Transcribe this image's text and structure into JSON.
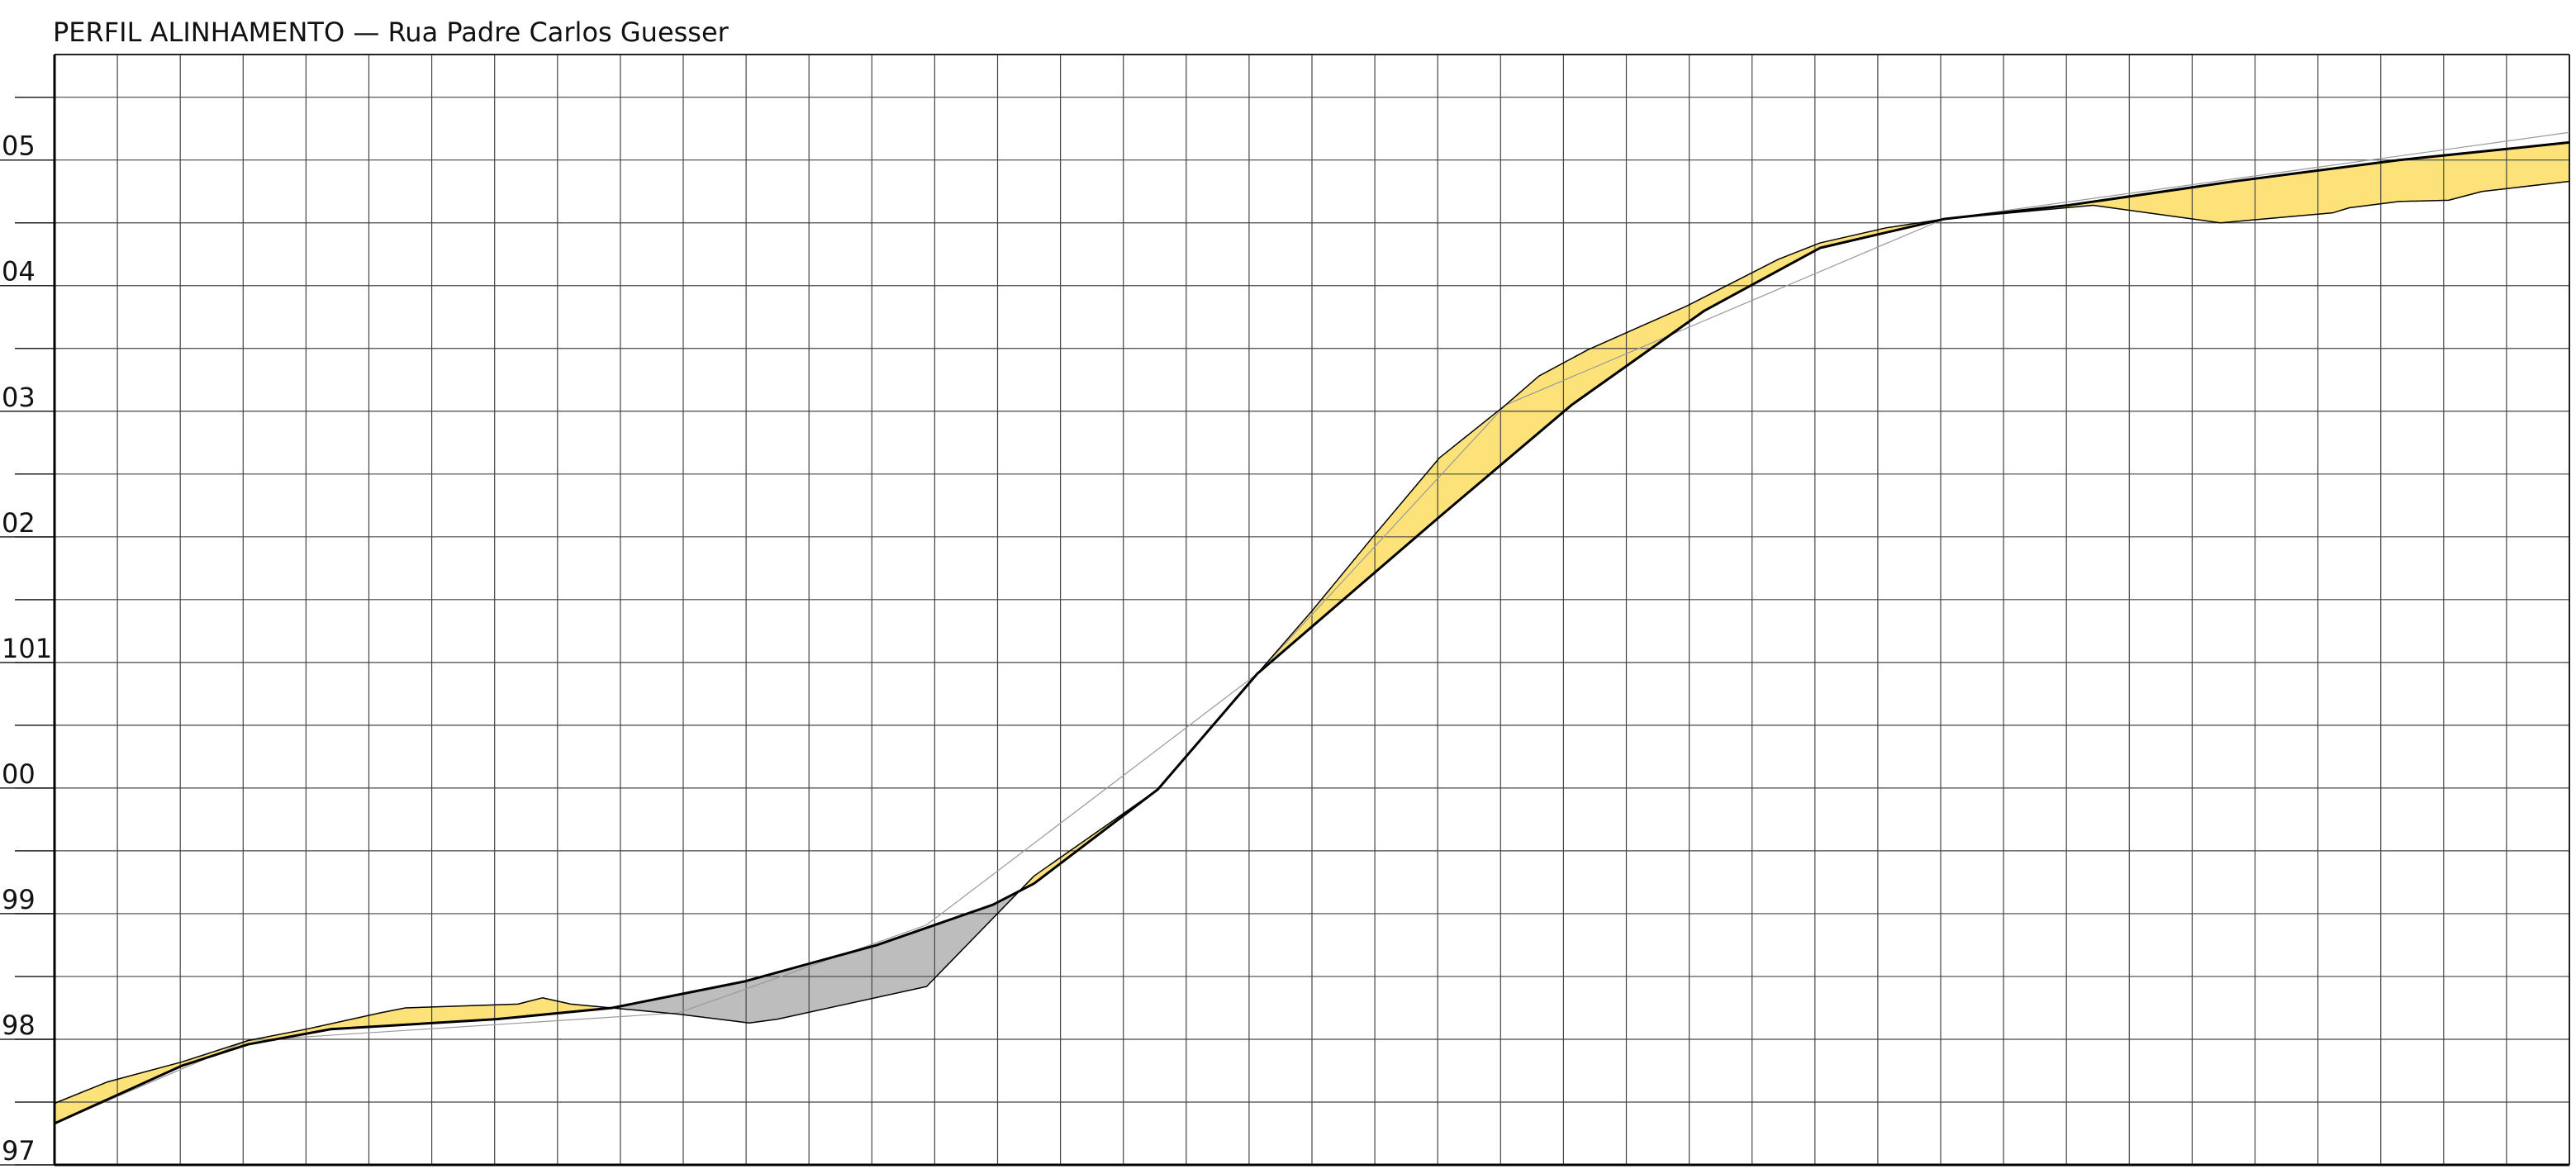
{
  "chart_data": {
    "type": "profile",
    "title": "PERFIL ALINHAMENTO — Rua Padre Carlos Guesser",
    "xlim": [
      0,
      40
    ],
    "xgrid": [
      0,
      1,
      2,
      3,
      4,
      5,
      6,
      7,
      8,
      9,
      10,
      11,
      12,
      13,
      14,
      15,
      16,
      17,
      18,
      19,
      20,
      21,
      22,
      23,
      24,
      25,
      26,
      27,
      28,
      29,
      30,
      31,
      32,
      33,
      34,
      35,
      36,
      37,
      38,
      39,
      40
    ],
    "ylim": [
      97,
      105.84
    ],
    "yticks": [
      97,
      98,
      99,
      {
        "value": 100,
        "label": "00"
      },
      101,
      {
        "value": 102,
        "label": "02"
      },
      {
        "value": 103,
        "label": "03"
      },
      {
        "value": 104,
        "label": "04"
      },
      {
        "value": 105,
        "label": "05"
      }
    ],
    "ygrid": [
      97,
      97.5,
      98,
      98.5,
      99,
      99.5,
      100,
      100.5,
      101,
      101.5,
      102,
      102.5,
      103,
      103.5,
      104,
      104.5,
      105,
      105.5
    ],
    "grid": true,
    "fill_above_color": "#fde27a",
    "fill_below_color": "#bdbdbd",
    "series": [
      {
        "color": "#000000",
        "width": 3,
        "x": [
          0,
          2.03,
          3.08,
          4.39,
          7.03,
          8.87,
          10.97,
          13.08,
          14.92,
          15.58,
          17.55,
          19.13,
          22.03,
          24.13,
          26.24,
          28.08,
          30.05,
          32.03,
          34.66,
          37.29,
          40
        ],
        "values": [
          97.33,
          97.79,
          97.96,
          98.08,
          98.16,
          98.25,
          98.46,
          98.75,
          99.07,
          99.24,
          99.99,
          100.91,
          102.16,
          103.05,
          103.8,
          104.3,
          104.53,
          104.64,
          104.83,
          105.0,
          105.14
        ]
      },
      {
        "color": "#000000",
        "width": 1.5,
        "x": [
          0,
          0.84,
          2.03,
          3.08,
          4.0,
          5.18,
          5.58,
          7.37,
          7.76,
          8.21,
          9.92,
          11.05,
          11.5,
          13.87,
          15.58,
          17.55,
          19.13,
          20.0,
          20.97,
          22.03,
          23.08,
          23.61,
          24.39,
          25.97,
          27.42,
          28.08,
          29.13,
          30.05,
          32.42,
          34.45,
          36.24,
          36.5,
          37.29,
          38.08,
          38.61,
          40
        ],
        "values": [
          97.49,
          97.66,
          97.82,
          97.99,
          98.08,
          98.21,
          98.25,
          98.28,
          98.33,
          98.28,
          98.2,
          98.13,
          98.16,
          98.42,
          99.3,
          99.99,
          100.91,
          101.41,
          102.0,
          102.63,
          103.05,
          103.28,
          103.49,
          103.84,
          104.21,
          104.34,
          104.46,
          104.53,
          104.64,
          104.5,
          104.58,
          104.62,
          104.67,
          104.68,
          104.75,
          104.83
        ]
      },
      {
        "color": "#9a9a9a",
        "width": 1.2,
        "x": [
          0,
          3.08,
          9.92,
          13.87,
          19.13,
          23.08,
          30.05,
          40
        ],
        "values": [
          97.33,
          97.99,
          98.21,
          98.91,
          100.91,
          103.05,
          104.53,
          105.22
        ]
      }
    ]
  }
}
